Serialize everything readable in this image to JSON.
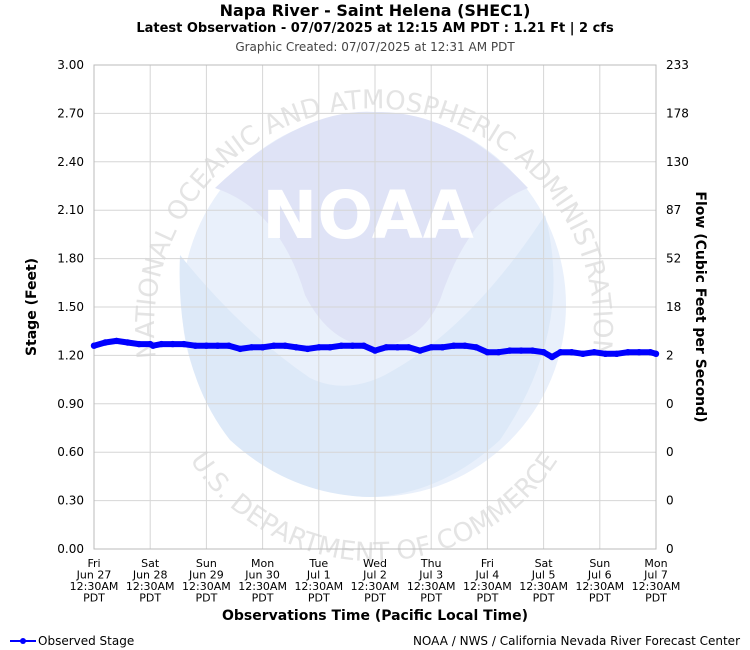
{
  "header": {
    "title": "Napa River - Saint Helena (SHEC1)",
    "subtitle": "Latest Observation - 07/07/2025 at 12:15 AM PDT : 1.21 Ft | 2 cfs",
    "created": "Graphic Created: 07/07/2025 at 12:31 AM PDT"
  },
  "watermark": {
    "logo_text": "NOAA",
    "ring_top": "NATIONAL OCEANIC AND ATMOSPHERIC ADMINISTRATION",
    "ring_bottom": "U.S. DEPARTMENT OF COMMERCE"
  },
  "legend": {
    "label": "Observed Stage",
    "color": "#0000ff"
  },
  "footer": {
    "credit": "NOAA / NWS / California Nevada River Forecast Center"
  },
  "chart_data": {
    "type": "line",
    "title": "Napa River - Saint Helena (SHEC1)",
    "xlabel": "Observations Time (Pacific Local Time)",
    "ylabel": "Stage (Feet)",
    "y2label": "Flow (Cubic Feet per Second)",
    "ylim": [
      0,
      3
    ],
    "xlim": [
      0,
      10
    ],
    "grid": true,
    "y_ticks": [
      "0.00",
      "0.30",
      "0.60",
      "0.90",
      "1.20",
      "1.50",
      "1.80",
      "2.10",
      "2.40",
      "2.70",
      "3.00"
    ],
    "y2_ticks": [
      "0",
      "0",
      "0",
      "0",
      "2",
      "18",
      "52",
      "87",
      "130",
      "178",
      "233"
    ],
    "x_ticks": [
      [
        "Fri",
        "Jun 27",
        "12:30AM",
        "PDT"
      ],
      [
        "Sat",
        "Jun 28",
        "12:30AM",
        "PDT"
      ],
      [
        "Sun",
        "Jun 29",
        "12:30AM",
        "PDT"
      ],
      [
        "Mon",
        "Jun 30",
        "12:30AM",
        "PDT"
      ],
      [
        "Tue",
        "Jul 1",
        "12:30AM",
        "PDT"
      ],
      [
        "Wed",
        "Jul 2",
        "12:30AM",
        "PDT"
      ],
      [
        "Thu",
        "Jul 3",
        "12:30AM",
        "PDT"
      ],
      [
        "Fri",
        "Jul 4",
        "12:30AM",
        "PDT"
      ],
      [
        "Sat",
        "Jul 5",
        "12:30AM",
        "PDT"
      ],
      [
        "Sun",
        "Jul 6",
        "12:30AM",
        "PDT"
      ],
      [
        "Mon",
        "Jul 7",
        "12:30AM",
        "PDT"
      ]
    ],
    "series": [
      {
        "name": "Observed Stage",
        "color": "#0000ff",
        "x": [
          0,
          0.2,
          0.4,
          0.6,
          0.8,
          1.0,
          1.05,
          1.2,
          1.4,
          1.6,
          1.8,
          2.0,
          2.2,
          2.4,
          2.6,
          2.8,
          3.0,
          3.2,
          3.4,
          3.6,
          3.8,
          4.0,
          4.2,
          4.4,
          4.6,
          4.8,
          5.0,
          5.2,
          5.4,
          5.6,
          5.8,
          6.0,
          6.2,
          6.4,
          6.6,
          6.8,
          7.0,
          7.2,
          7.4,
          7.6,
          7.8,
          8.0,
          8.15,
          8.3,
          8.5,
          8.7,
          8.9,
          9.1,
          9.3,
          9.5,
          9.7,
          9.9,
          10.0
        ],
        "y": [
          1.26,
          1.28,
          1.29,
          1.28,
          1.27,
          1.27,
          1.26,
          1.27,
          1.27,
          1.27,
          1.26,
          1.26,
          1.26,
          1.26,
          1.24,
          1.25,
          1.25,
          1.26,
          1.26,
          1.25,
          1.24,
          1.25,
          1.25,
          1.26,
          1.26,
          1.26,
          1.23,
          1.25,
          1.25,
          1.25,
          1.23,
          1.25,
          1.25,
          1.26,
          1.26,
          1.25,
          1.22,
          1.22,
          1.23,
          1.23,
          1.23,
          1.22,
          1.19,
          1.22,
          1.22,
          1.21,
          1.22,
          1.21,
          1.21,
          1.22,
          1.22,
          1.22,
          1.21
        ]
      }
    ]
  }
}
